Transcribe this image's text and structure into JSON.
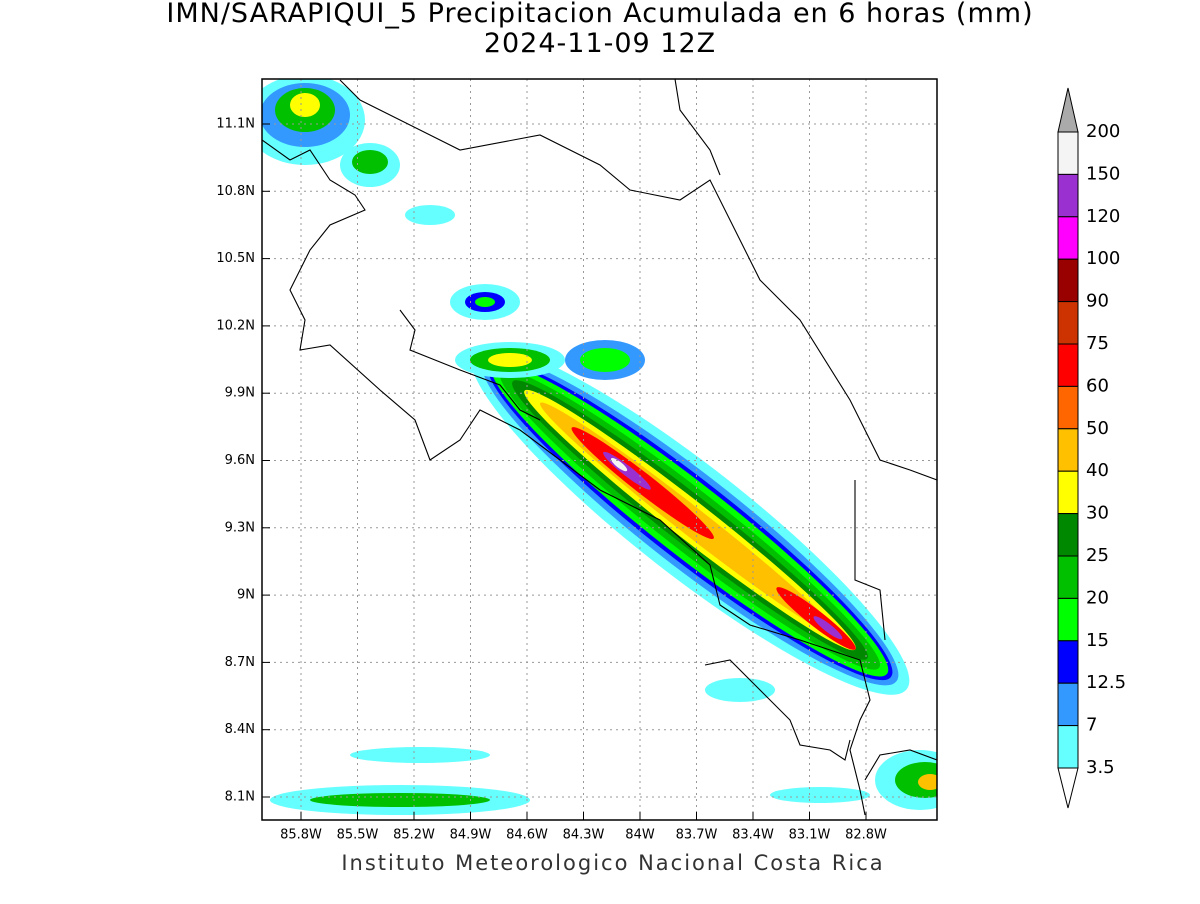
{
  "header": {
    "title": "IMN/SARAPIQUI_5 Precipitacion Acumulada en 6 horas (mm)",
    "subtitle": "2024-11-09 12Z"
  },
  "map": {
    "lat_labels": [
      "11.1N",
      "10.8N",
      "10.5N",
      "10.2N",
      "9.9N",
      "9.6N",
      "9.3N",
      "9N",
      "8.7N",
      "8.4N",
      "8.1N"
    ],
    "lon_labels": [
      "85.8W",
      "85.5W",
      "85.2W",
      "84.9W",
      "84.6W",
      "84.3W",
      "84W",
      "83.7W",
      "83.4W",
      "83.1W",
      "82.8W"
    ]
  },
  "colorbar": {
    "labels": [
      200,
      150,
      120,
      100,
      90,
      75,
      60,
      50,
      40,
      30,
      25,
      20,
      15,
      12.5,
      7,
      3.5
    ],
    "colors": [
      "#f4f4f4",
      "#9b30d0",
      "#ff00ff",
      "#990000",
      "#cc3300",
      "#ff0000",
      "#ff6600",
      "#ffc000",
      "#ffff00",
      "#008800",
      "#00c000",
      "#00ff00",
      "#0000ff",
      "#3399ff",
      "#66ffff"
    ],
    "over_color": "#aaaaaa",
    "under_color": "#ffffff"
  },
  "footer": "Instituto Meteorologico Nacional Costa Rica"
}
